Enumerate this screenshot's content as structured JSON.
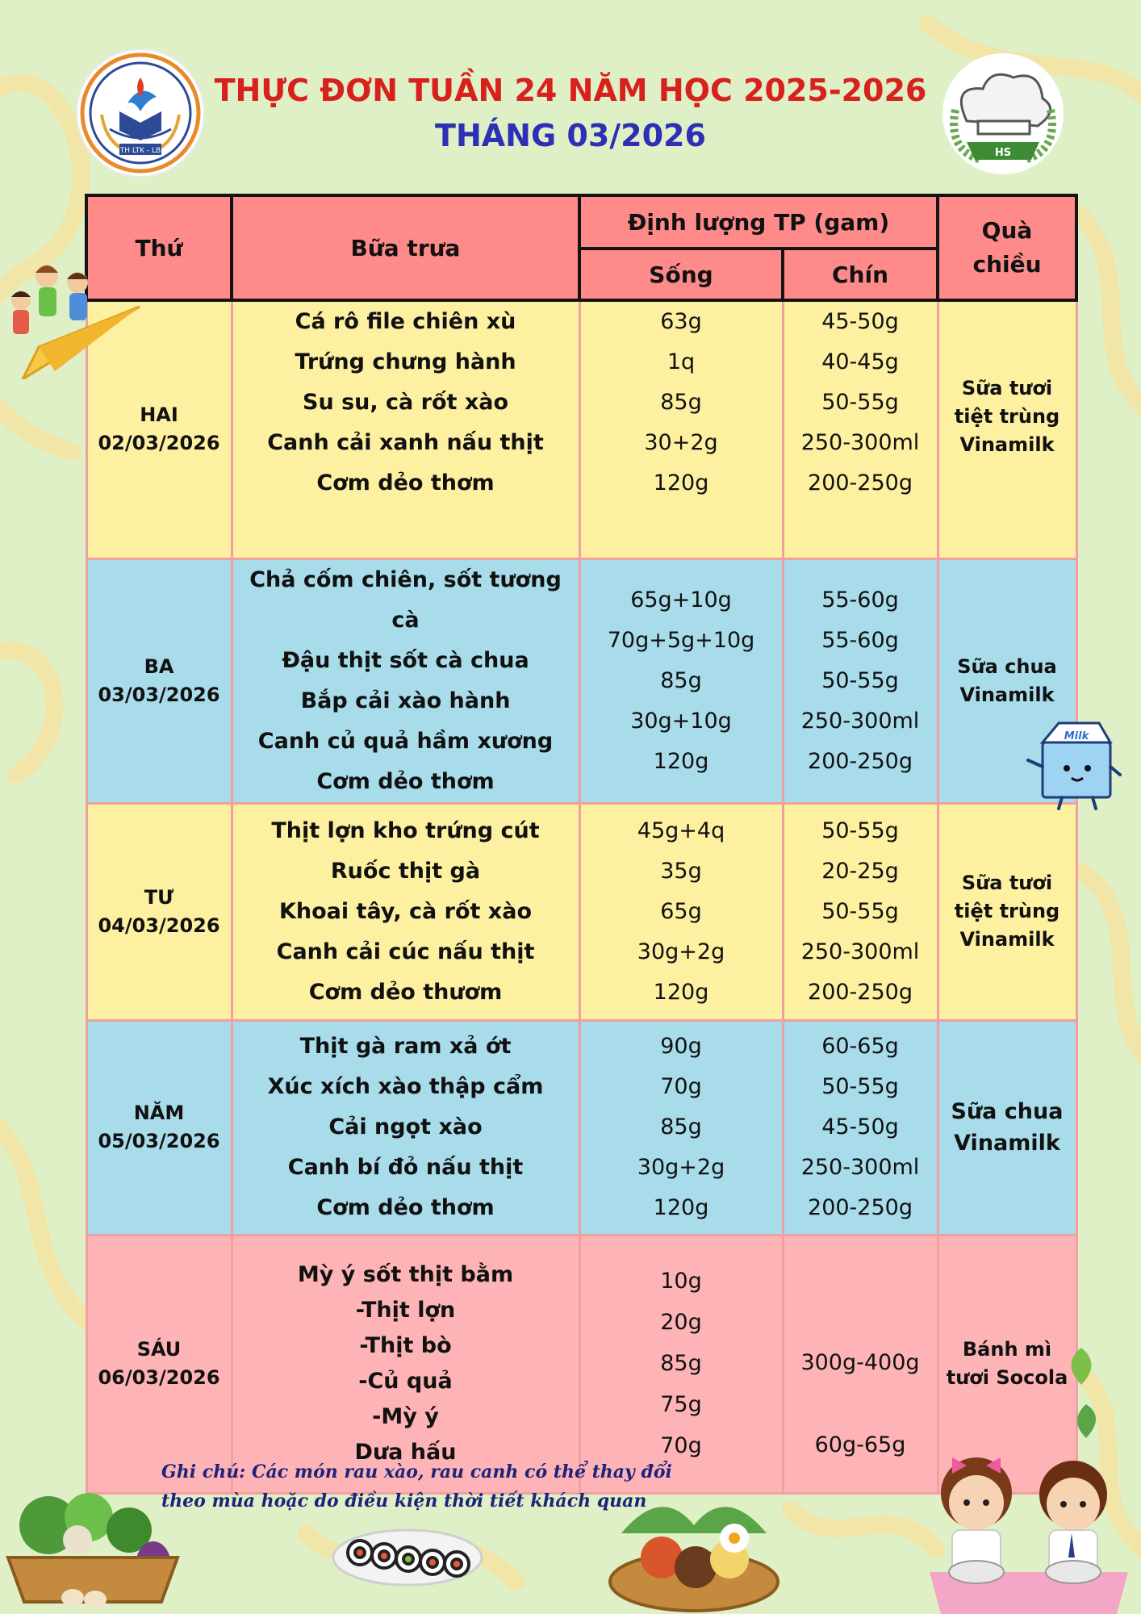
{
  "header": {
    "title": "THỰC ĐƠN TUẦN 24 NĂM HỌC 2025-2026",
    "month": "THÁNG 03/2026",
    "school_logo_text": "TH LTK - LB",
    "chef_logo_text": "HS"
  },
  "table": {
    "headers": {
      "day": "Thứ",
      "lunch": "Bữa trưa",
      "quantity": "Định lượng TP (gam)",
      "raw": "Sống",
      "cooked": "Chín",
      "snack": "Quà chiều"
    },
    "rows": [
      {
        "day": "HAI",
        "date": "02/03/2026",
        "dishes": [
          "Cá rô file chiên xù",
          "Trứng chưng hành",
          "Su su, cà rốt xào",
          "Canh cải xanh nấu thịt",
          "Cơm dẻo thơm"
        ],
        "raw": [
          "63g",
          "1q",
          "85g",
          "30+2g",
          "120g"
        ],
        "cooked": [
          "45-50g",
          "40-45g",
          "50-55g",
          "250-300ml",
          "200-250g"
        ],
        "snack": [
          "Sữa tươi",
          "tiệt trùng",
          "Vinamilk"
        ]
      },
      {
        "day": "BA",
        "date": "03/03/2026",
        "dishes": [
          "Chả cốm chiên, sốt tương cà",
          "Đậu thịt sốt cà chua",
          "Bắp cải xào hành",
          "Canh củ quả hầm xương",
          "Cơm dẻo thơm"
        ],
        "raw": [
          "65g+10g",
          "70g+5g+10g",
          "85g",
          "30g+10g",
          "120g"
        ],
        "cooked": [
          "55-60g",
          "55-60g",
          "50-55g",
          "250-300ml",
          "200-250g"
        ],
        "snack": [
          "Sữa chua",
          "Vinamilk"
        ]
      },
      {
        "day": "TƯ",
        "date": "04/03/2026",
        "dishes": [
          "Thịt lợn kho trứng cút",
          "Ruốc thịt gà",
          "Khoai tây, cà rốt xào",
          "Canh cải cúc nấu thịt",
          "Cơm dẻo thươm"
        ],
        "raw": [
          "45g+4q",
          "35g",
          "65g",
          "30g+2g",
          "120g"
        ],
        "cooked": [
          "50-55g",
          "20-25g",
          "50-55g",
          "250-300ml",
          "200-250g"
        ],
        "snack": [
          "Sữa tươi",
          "tiệt trùng",
          "Vinamilk"
        ]
      },
      {
        "day": "NĂM",
        "date": "05/03/2026",
        "dishes": [
          "Thịt gà ram xả ớt",
          "Xúc xích xào thập cẩm",
          "Cải ngọt xào",
          "Canh bí đỏ nấu thịt",
          "Cơm dẻo thơm"
        ],
        "raw": [
          "90g",
          "70g",
          "85g",
          "30g+2g",
          "120g"
        ],
        "cooked": [
          "60-65g",
          "50-55g",
          "45-50g",
          "250-300ml",
          "200-250g"
        ],
        "snack": [
          "Sữa chua",
          "Vinamilk"
        ]
      },
      {
        "day": "SÁU",
        "date": "06/03/2026",
        "dishes": [
          "Mỳ ý sốt thịt bằm",
          "-Thịt lợn",
          "-Thịt bò",
          "-Củ quả",
          "-Mỳ ý",
          "Dưa hấu"
        ],
        "raw": [
          "10g",
          "20g",
          "85g",
          "75g",
          "70g"
        ],
        "cooked": [
          "300g-400g",
          "60g-65g"
        ],
        "snack": [
          "Bánh mì",
          "tươi Socola"
        ]
      }
    ]
  },
  "note": {
    "line1": "Ghi chú: Các món rau xào, rau canh có thể thay đổi",
    "line2": "theo mùa hoặc do điều kiện thời tiết khách quan"
  },
  "decor": {
    "milk_box_label": "Milk"
  },
  "colors": {
    "title_red": "#d8201d",
    "title_blue": "#2d2fb4",
    "header_bg": "#fe8a8a",
    "yellow_row": "#fdf0a0",
    "blue_row": "#a8dceb",
    "pink_row": "#feb4b6",
    "background": "#dff0c6"
  }
}
